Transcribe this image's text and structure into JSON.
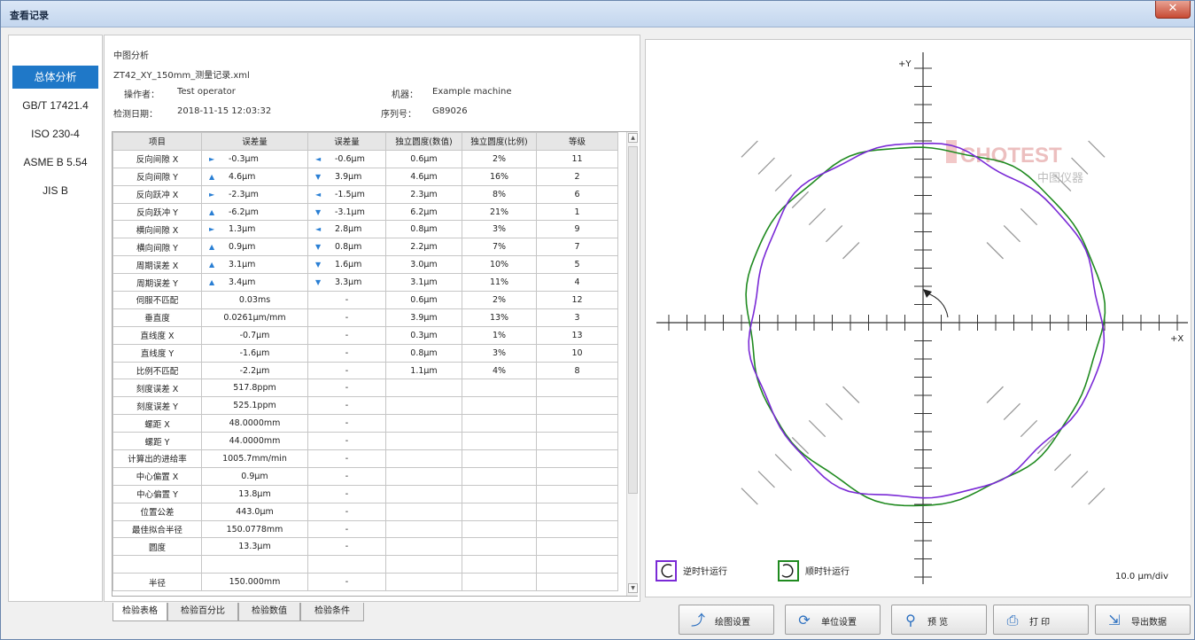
{
  "window": {
    "title": "查看记录",
    "close_label": "✕"
  },
  "sidebar": {
    "items": [
      {
        "label": "总体分析",
        "active": true
      },
      {
        "label": "GB/T 17421.4"
      },
      {
        "label": "ISO 230-4"
      },
      {
        "label": "ASME B 5.54"
      },
      {
        "label": "JIS B"
      }
    ]
  },
  "info": {
    "analysis_type": "中图分析",
    "filename": "ZT42_XY_150mm_测量记录.xml",
    "operator_label": "操作者：",
    "operator": "Test operator",
    "machine_label": "机器：",
    "machine": "Example machine",
    "date_label": "检测日期：",
    "date": "2018-11-15 12:03:32",
    "serial_label": "序列号：",
    "serial": "G89026"
  },
  "table": {
    "headers": [
      "项目",
      "误差量",
      "误差量",
      "独立圆度(数值)",
      "独立圆度(比例)",
      "等级"
    ],
    "rows": [
      [
        "反向间隙 X",
        "►",
        "-0.3μm",
        "◄",
        "-0.6μm",
        "0.6μm",
        "2%",
        "11"
      ],
      [
        "反向间隙 Y",
        "▲",
        "4.6μm",
        "▼",
        "3.9μm",
        "4.6μm",
        "16%",
        "2"
      ],
      [
        "反向跃冲 X",
        "►",
        "-2.3μm",
        "◄",
        "-1.5μm",
        "2.3μm",
        "8%",
        "6"
      ],
      [
        "反向跃冲 Y",
        "▲",
        "-6.2μm",
        "▼",
        "-3.1μm",
        "6.2μm",
        "21%",
        "1"
      ],
      [
        "横向间隙 X",
        "►",
        "1.3μm",
        "◄",
        "2.8μm",
        "0.8μm",
        "3%",
        "9"
      ],
      [
        "横向间隙 Y",
        "▲",
        "0.9μm",
        "▼",
        "0.8μm",
        "2.2μm",
        "7%",
        "7"
      ],
      [
        "周期误差 X",
        "▲",
        "3.1μm",
        "▼",
        "1.6μm",
        "3.0μm",
        "10%",
        "5"
      ],
      [
        "周期误差 Y",
        "▲",
        "3.4μm",
        "▼",
        "3.3μm",
        "3.1μm",
        "11%",
        "4"
      ],
      [
        "伺服不匹配",
        "",
        "0.03ms",
        "",
        "-",
        "0.6μm",
        "2%",
        "12"
      ],
      [
        "垂直度",
        "",
        "0.0261μm/mm",
        "",
        "-",
        "3.9μm",
        "13%",
        "3"
      ],
      [
        "直线度 X",
        "",
        "-0.7μm",
        "",
        "-",
        "0.3μm",
        "1%",
        "13"
      ],
      [
        "直线度 Y",
        "",
        "-1.6μm",
        "",
        "-",
        "0.8μm",
        "3%",
        "10"
      ],
      [
        "比例不匹配",
        "",
        "-2.2μm",
        "",
        "-",
        "1.1μm",
        "4%",
        "8"
      ],
      [
        "刻度误差 X",
        "",
        "517.8ppm",
        "",
        "-",
        "",
        "",
        ""
      ],
      [
        "刻度误差 Y",
        "",
        "525.1ppm",
        "",
        "-",
        "",
        "",
        ""
      ],
      [
        "螺距 X",
        "",
        "48.0000mm",
        "",
        "-",
        "",
        "",
        ""
      ],
      [
        "螺距 Y",
        "",
        "44.0000mm",
        "",
        "-",
        "",
        "",
        ""
      ],
      [
        "计算出的进给率",
        "",
        "1005.7mm/min",
        "",
        "-",
        "",
        "",
        ""
      ],
      [
        "中心偏置 X",
        "",
        "0.9μm",
        "",
        "-",
        "",
        "",
        ""
      ],
      [
        "中心偏置 Y",
        "",
        "13.8μm",
        "",
        "-",
        "",
        "",
        ""
      ],
      [
        "位置公差",
        "",
        "443.0μm",
        "",
        "-",
        "",
        "",
        ""
      ],
      [
        "最佳拟合半径",
        "",
        "150.0778mm",
        "",
        "-",
        "",
        "",
        ""
      ],
      [
        "圆度",
        "",
        "13.3μm",
        "",
        "-",
        "",
        "",
        ""
      ],
      [
        "",
        "",
        "",
        "",
        "",
        "",
        "",
        ""
      ],
      [
        "半径",
        "",
        "150.000mm",
        "",
        "-",
        "",
        "",
        ""
      ]
    ]
  },
  "tabs": [
    {
      "label": "检验表格",
      "active": true
    },
    {
      "label": "检验百分比"
    },
    {
      "label": "检验数值"
    },
    {
      "label": "检验条件"
    }
  ],
  "plot": {
    "y_axis_label": "+Y",
    "x_axis_label": "+X",
    "scale_label": "10.0 μm/div",
    "legend": [
      {
        "label": "逆时针运行",
        "color": "#7a2ad6",
        "icon": "counterclockwise-icon"
      },
      {
        "label": "顺时针运行",
        "color": "#1f8a1f",
        "icon": "clockwise-icon"
      }
    ],
    "watermark_brand": "CHOTEST",
    "watermark_sub": "中图仪器",
    "axis_color": "#333333",
    "hatch_color": "#9a9a9a"
  },
  "toolbar": {
    "buttons": [
      {
        "label": "绘图设置",
        "icon": "plot-settings-icon",
        "glyph": "⤴"
      },
      {
        "label": "单位设置",
        "icon": "unit-settings-icon",
        "glyph": "⟳"
      },
      {
        "label": "预 览",
        "icon": "magnifier-icon",
        "glyph": "⚲"
      },
      {
        "label": "打 印",
        "icon": "printer-icon",
        "glyph": "⎙"
      },
      {
        "label": "导出数据",
        "icon": "export-data-icon",
        "glyph": "⇲"
      }
    ]
  }
}
